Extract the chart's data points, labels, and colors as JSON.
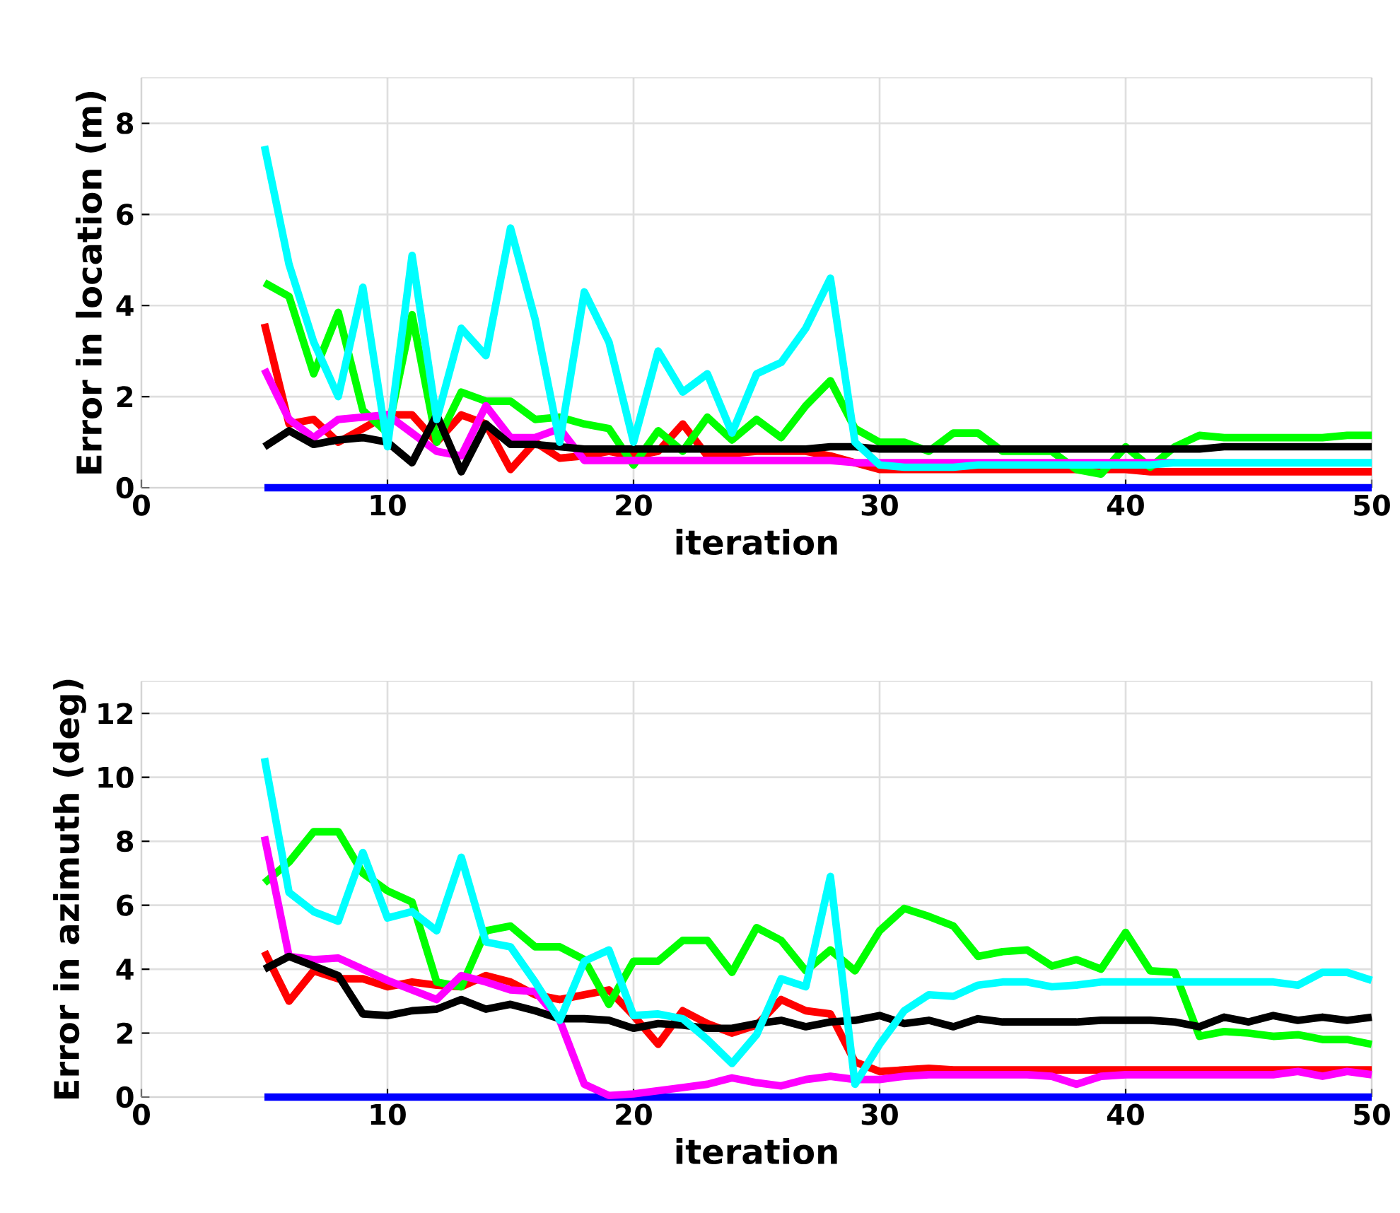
{
  "chart_data": [
    {
      "type": "line",
      "xlabel": "iteration",
      "ylabel": "Error in location (m)",
      "xlim": [
        0,
        50
      ],
      "ylim": [
        0,
        9
      ],
      "xticks": [
        0,
        10,
        20,
        30,
        40,
        50
      ],
      "yticks": [
        0,
        2,
        4,
        6,
        8
      ],
      "grid": true,
      "line_style": "solid",
      "x": [
        5,
        6,
        7,
        8,
        9,
        10,
        11,
        12,
        13,
        14,
        15,
        16,
        17,
        18,
        19,
        20,
        21,
        22,
        23,
        24,
        25,
        26,
        27,
        28,
        29,
        30,
        31,
        32,
        33,
        34,
        35,
        36,
        37,
        38,
        39,
        40,
        41,
        42,
        43,
        44,
        45,
        46,
        47,
        48,
        49,
        50
      ],
      "series": [
        {
          "color": "#0000ff",
          "values": [
            0,
            0,
            0,
            0,
            0,
            0,
            0,
            0,
            0,
            0,
            0,
            0,
            0,
            0,
            0,
            0,
            0,
            0,
            0,
            0,
            0,
            0,
            0,
            0,
            0,
            0,
            0,
            0,
            0,
            0,
            0,
            0,
            0,
            0,
            0,
            0,
            0,
            0,
            0,
            0,
            0,
            0,
            0,
            0,
            0,
            0
          ]
        },
        {
          "color": "#ff0000",
          "values": [
            3.6,
            1.4,
            1.5,
            1.0,
            1.3,
            1.6,
            1.6,
            1.0,
            1.6,
            1.4,
            0.4,
            1.0,
            0.65,
            0.7,
            0.8,
            0.7,
            0.8,
            1.4,
            0.7,
            0.75,
            0.8,
            0.8,
            0.8,
            0.7,
            0.55,
            0.4,
            0.4,
            0.4,
            0.4,
            0.4,
            0.4,
            0.4,
            0.4,
            0.4,
            0.4,
            0.4,
            0.35,
            0.35,
            0.35,
            0.35,
            0.35,
            0.35,
            0.35,
            0.35,
            0.35,
            0.35
          ]
        },
        {
          "color": "#00ff00",
          "values": [
            4.5,
            4.2,
            2.5,
            3.85,
            1.7,
            1.2,
            3.8,
            1.0,
            2.1,
            1.9,
            1.9,
            1.5,
            1.55,
            1.4,
            1.3,
            0.5,
            1.25,
            0.8,
            1.55,
            1.05,
            1.5,
            1.1,
            1.8,
            2.35,
            1.3,
            1.0,
            1.0,
            0.8,
            1.2,
            1.2,
            0.8,
            0.8,
            0.8,
            0.4,
            0.3,
            0.9,
            0.45,
            0.9,
            1.15,
            1.1,
            1.1,
            1.1,
            1.1,
            1.1,
            1.15,
            1.15
          ]
        },
        {
          "color": "#ff00ff",
          "values": [
            2.6,
            1.5,
            1.1,
            1.5,
            1.55,
            1.6,
            1.2,
            0.8,
            0.7,
            1.8,
            1.1,
            1.1,
            1.3,
            0.6,
            0.6,
            0.6,
            0.6,
            0.6,
            0.6,
            0.6,
            0.6,
            0.6,
            0.6,
            0.6,
            0.55,
            0.55,
            0.55,
            0.55,
            0.55,
            0.55,
            0.55,
            0.55,
            0.55,
            0.55,
            0.55,
            0.55,
            0.55,
            0.55,
            null,
            null,
            null,
            null,
            null,
            null,
            null,
            null
          ]
        },
        {
          "color": "#000000",
          "values": [
            0.9,
            1.25,
            0.95,
            1.05,
            1.1,
            1.0,
            0.55,
            1.6,
            0.35,
            1.4,
            0.95,
            0.95,
            0.9,
            0.85,
            0.85,
            0.85,
            0.85,
            0.85,
            0.85,
            0.85,
            0.85,
            0.85,
            0.85,
            0.9,
            0.9,
            0.85,
            0.85,
            0.85,
            0.85,
            0.85,
            0.85,
            0.85,
            0.85,
            0.85,
            0.85,
            0.85,
            0.85,
            0.85,
            0.85,
            0.9,
            0.9,
            0.9,
            0.9,
            0.9,
            0.9,
            0.9
          ]
        },
        {
          "color": "#00ffff",
          "values": [
            7.5,
            4.9,
            3.2,
            2.0,
            4.4,
            0.9,
            5.1,
            1.5,
            3.5,
            2.9,
            5.7,
            3.7,
            1.0,
            4.3,
            3.2,
            1.0,
            3.0,
            2.1,
            2.5,
            1.2,
            2.5,
            2.75,
            3.5,
            4.6,
            1.0,
            0.5,
            0.45,
            0.45,
            0.45,
            0.5,
            0.5,
            0.5,
            0.5,
            0.5,
            0.5,
            0.5,
            0.5,
            0.55,
            0.55,
            0.55,
            0.55,
            0.55,
            0.55,
            0.55,
            0.55,
            0.55
          ]
        }
      ]
    },
    {
      "type": "line",
      "xlabel": "iteration",
      "ylabel": "Error in azimuth (deg)",
      "xlim": [
        0,
        50
      ],
      "ylim": [
        0,
        13
      ],
      "xticks": [
        0,
        10,
        20,
        30,
        40,
        50
      ],
      "yticks": [
        0,
        2,
        4,
        6,
        8,
        10,
        12
      ],
      "grid": true,
      "line_style": "solid",
      "x": [
        5,
        6,
        7,
        8,
        9,
        10,
        11,
        12,
        13,
        14,
        15,
        16,
        17,
        18,
        19,
        20,
        21,
        22,
        23,
        24,
        25,
        26,
        27,
        28,
        29,
        30,
        31,
        32,
        33,
        34,
        35,
        36,
        37,
        38,
        39,
        40,
        41,
        42,
        43,
        44,
        45,
        46,
        47,
        48,
        49,
        50
      ],
      "series": [
        {
          "color": "#0000ff",
          "values": [
            0,
            0,
            0,
            0,
            0,
            0,
            0,
            0,
            0,
            0,
            0,
            0,
            0,
            0,
            0,
            0,
            0,
            0,
            0,
            0,
            0,
            0,
            0,
            0,
            0,
            0,
            0,
            0,
            0,
            0,
            0,
            0,
            0,
            0,
            0,
            0,
            0,
            0,
            0,
            0,
            0,
            0,
            0,
            0,
            0,
            0
          ]
        },
        {
          "color": "#ff0000",
          "values": [
            4.55,
            3.0,
            3.95,
            3.7,
            3.7,
            3.45,
            3.6,
            3.5,
            3.45,
            3.8,
            3.6,
            3.2,
            3.05,
            3.2,
            3.35,
            2.55,
            1.65,
            2.7,
            2.3,
            2.0,
            2.25,
            3.05,
            2.7,
            2.6,
            1.1,
            0.8,
            0.85,
            0.9,
            0.85,
            0.85,
            0.85,
            0.85,
            0.85,
            0.85,
            0.85,
            0.85,
            0.85,
            0.85,
            0.85,
            0.85,
            0.85,
            0.85,
            0.85,
            0.85,
            0.85,
            0.85
          ]
        },
        {
          "color": "#00ff00",
          "values": [
            6.7,
            7.35,
            8.3,
            8.3,
            7.0,
            6.45,
            6.1,
            3.6,
            3.45,
            5.2,
            5.35,
            4.7,
            4.7,
            4.3,
            2.9,
            4.25,
            4.25,
            4.9,
            4.9,
            3.9,
            5.3,
            4.9,
            3.95,
            4.6,
            3.95,
            5.2,
            5.9,
            5.65,
            5.35,
            4.4,
            4.55,
            4.6,
            4.1,
            4.3,
            4.0,
            5.15,
            3.95,
            3.9,
            1.9,
            2.05,
            2.0,
            1.9,
            1.95,
            1.8,
            1.8,
            1.65
          ]
        },
        {
          "color": "#ff00ff",
          "values": [
            8.15,
            4.4,
            4.3,
            4.35,
            4.0,
            3.65,
            3.35,
            3.05,
            3.8,
            3.6,
            3.35,
            3.3,
            2.4,
            0.4,
            0.05,
            0.1,
            0.2,
            0.3,
            0.4,
            0.6,
            0.45,
            0.35,
            0.55,
            0.65,
            0.55,
            0.55,
            0.65,
            0.7,
            0.7,
            0.7,
            0.7,
            0.7,
            0.65,
            0.4,
            0.65,
            0.7,
            0.7,
            0.7,
            0.7,
            0.7,
            0.7,
            0.7,
            0.8,
            0.65,
            0.8,
            0.7
          ]
        },
        {
          "color": "#000000",
          "values": [
            4.0,
            4.4,
            4.1,
            3.8,
            2.6,
            2.55,
            2.7,
            2.75,
            3.05,
            2.75,
            2.9,
            2.7,
            2.45,
            2.45,
            2.4,
            2.15,
            2.3,
            2.25,
            2.15,
            2.15,
            2.3,
            2.4,
            2.2,
            2.35,
            2.4,
            2.55,
            2.3,
            2.4,
            2.2,
            2.45,
            2.35,
            2.35,
            2.35,
            2.35,
            2.4,
            2.4,
            2.4,
            2.35,
            2.2,
            2.5,
            2.35,
            2.55,
            2.4,
            2.5,
            2.4,
            2.5
          ]
        },
        {
          "color": "#00ffff",
          "values": [
            10.6,
            6.4,
            5.8,
            5.5,
            7.65,
            5.6,
            5.8,
            5.2,
            7.5,
            4.85,
            4.7,
            3.6,
            2.4,
            4.25,
            4.6,
            2.55,
            2.6,
            2.45,
            1.8,
            1.05,
            1.95,
            3.7,
            3.45,
            6.9,
            0.4,
            1.65,
            2.7,
            3.2,
            3.15,
            3.5,
            3.6,
            3.6,
            3.45,
            3.5,
            3.6,
            3.6,
            3.6,
            3.6,
            3.6,
            3.6,
            3.6,
            3.6,
            3.5,
            3.9,
            3.9,
            3.65
          ]
        }
      ]
    }
  ]
}
